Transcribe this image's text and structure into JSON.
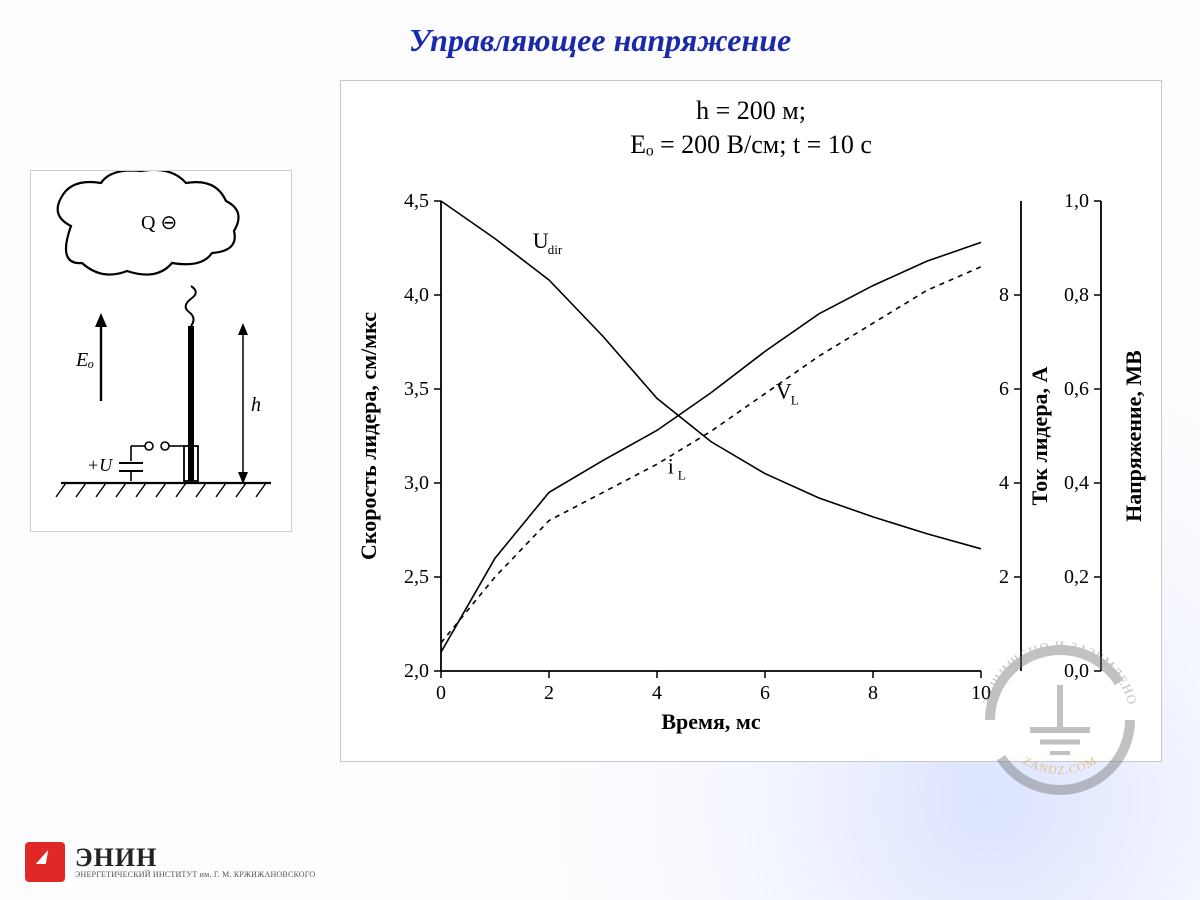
{
  "title": "Управляющее напряжение",
  "parameters": {
    "line1": "h = 200 м;",
    "line2": "Eₒ = 200 В/см;  t = 10 с"
  },
  "schematic": {
    "cloud_label": "Q ⊖",
    "field_label": "Eₒ",
    "source_label": "+U",
    "height_label": "h"
  },
  "chart": {
    "type": "line",
    "background_color": "#ffffff",
    "axis_color": "#000000",
    "x": {
      "label": "Время, мс",
      "min": 0,
      "max": 10,
      "ticks": [
        0,
        2,
        4,
        6,
        8,
        10
      ]
    },
    "y_left": {
      "label": "Скорость лидера, см/мкс",
      "min": 2.0,
      "max": 4.5,
      "ticks": [
        2.0,
        2.5,
        3.0,
        3.5,
        4.0,
        4.5
      ]
    },
    "y_right1": {
      "label": "Ток лидера, А",
      "min": 0,
      "max": 10,
      "ticks": [
        2,
        4,
        6,
        8
      ]
    },
    "y_right2": {
      "label": "Напряжение, МВ",
      "min": 0.0,
      "max": 1.0,
      "ticks": [
        0.0,
        0.2,
        0.4,
        0.6,
        0.8,
        1.0
      ]
    },
    "series": {
      "Udir": {
        "label": "Uₐᵢᵣ",
        "color": "#000000",
        "width": 1.6,
        "dash": "none",
        "points": [
          [
            0,
            4.5
          ],
          [
            1,
            4.3
          ],
          [
            2,
            4.08
          ],
          [
            3,
            3.78
          ],
          [
            4,
            3.45
          ],
          [
            5,
            3.22
          ],
          [
            6,
            3.05
          ],
          [
            7,
            2.92
          ],
          [
            8,
            2.82
          ],
          [
            9,
            2.73
          ],
          [
            10,
            2.65
          ]
        ]
      },
      "VL": {
        "label": "Vᴸ",
        "color": "#000000",
        "width": 1.6,
        "dash": "none",
        "points": [
          [
            0,
            2.1
          ],
          [
            0.5,
            2.35
          ],
          [
            1,
            2.6
          ],
          [
            2,
            2.95
          ],
          [
            3,
            3.12
          ],
          [
            4,
            3.28
          ],
          [
            5,
            3.48
          ],
          [
            6,
            3.7
          ],
          [
            7,
            3.9
          ],
          [
            8,
            4.05
          ],
          [
            9,
            4.18
          ],
          [
            10,
            4.28
          ]
        ]
      },
      "iL": {
        "label": "iᴸ",
        "color": "#000000",
        "width": 1.6,
        "dash": "5,5",
        "points": [
          [
            0,
            0.6
          ],
          [
            0.5,
            1.3
          ],
          [
            1,
            2.0
          ],
          [
            2,
            3.2
          ],
          [
            3,
            3.8
          ],
          [
            4,
            4.4
          ],
          [
            5,
            5.1
          ],
          [
            6,
            5.9
          ],
          [
            7,
            6.7
          ],
          [
            8,
            7.4
          ],
          [
            9,
            8.1
          ],
          [
            10,
            8.6
          ]
        ]
      }
    },
    "curve_label_pos": {
      "Udir": {
        "x": 1.7,
        "y": 4.25
      },
      "VL": {
        "x": 6.2,
        "y": 3.45
      },
      "iL": {
        "x": 4.2,
        "y": 3.05
      }
    },
    "title_fontsize": 26,
    "label_fontsize": 22,
    "tick_fontsize": 20
  },
  "logo": {
    "name": "ЭНИН",
    "sub": "ЭНЕРГЕТИЧЕСКИЙ ИНСТИТУТ им. Г. М. КРЖИЖАНОВСКОГО"
  },
  "watermark": {
    "upper": "ЗАЩИЩЕНО И ЗАЗЕМЛЕНО",
    "lower": "ZANDZ.COM",
    "ring_color": "#777777",
    "accent_color": "#e08a00"
  }
}
